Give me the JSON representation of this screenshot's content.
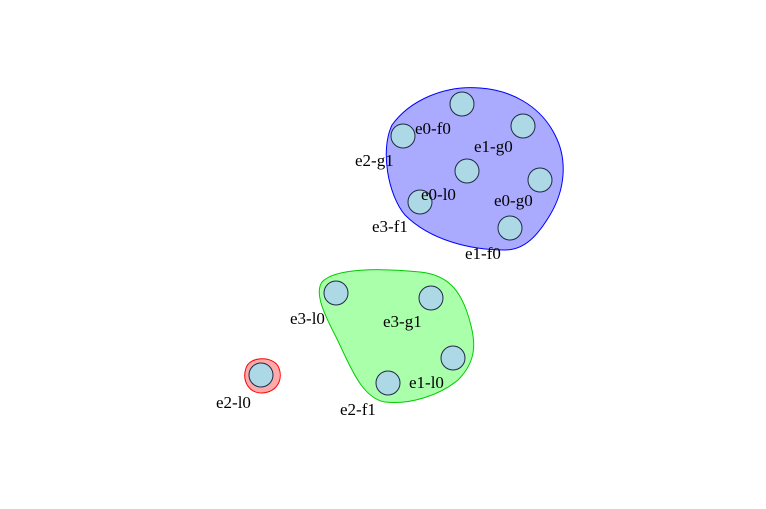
{
  "node_color": "#add8e6",
  "groups": [
    {
      "id": "blue",
      "fill": "#aaaaff",
      "stroke": "#0000ff",
      "nodes": [
        {
          "id": "top",
          "label": ""
        },
        {
          "id": "e2-g1",
          "label": "e2-g1"
        },
        {
          "id": "e1-g0",
          "label": "e1-g0"
        },
        {
          "id": "e0-l0",
          "label": "e0-l0"
        },
        {
          "id": "e0-g0",
          "label": "e0-g0"
        },
        {
          "id": "e3-f1",
          "label": "e3-f1"
        },
        {
          "id": "e1-f0",
          "label": "e1-f0"
        }
      ],
      "extra_labels": [
        "e0-f0"
      ]
    },
    {
      "id": "green",
      "fill": "#aaffaa",
      "stroke": "#00cc00",
      "nodes": [
        {
          "id": "e3-l0",
          "label": "e3-l0"
        },
        {
          "id": "e3-g1",
          "label": "e3-g1"
        },
        {
          "id": "e1-l0",
          "label": "e1-l0"
        },
        {
          "id": "e2-f1",
          "label": "e2-f1"
        }
      ]
    },
    {
      "id": "red",
      "fill": "#ffaaaa",
      "stroke": "#ff0000",
      "nodes": [
        {
          "id": "e2-l0",
          "label": "e2-l0"
        }
      ]
    }
  ]
}
